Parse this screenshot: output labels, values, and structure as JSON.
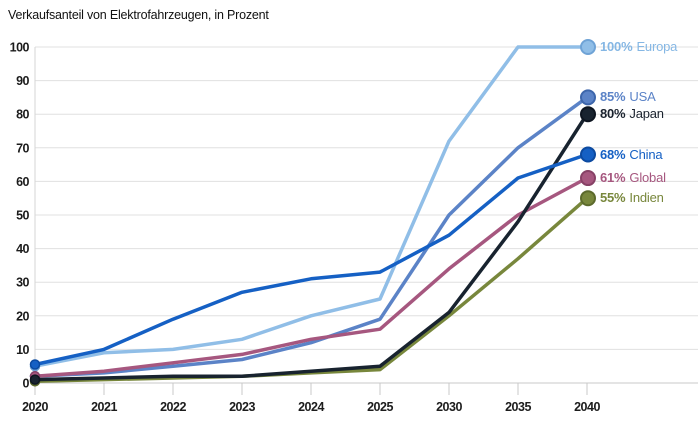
{
  "title": "Verkaufsanteil von Elektrofahrzeugen, in Prozent",
  "chart_data": {
    "type": "line",
    "title": "Verkaufsanteil von Elektrofahrzeugen, in Prozent",
    "categories": [
      "2020",
      "2021",
      "2022",
      "2023",
      "2024",
      "2025",
      "2030",
      "2035",
      "2040"
    ],
    "x_axis_note": "category axis, equal spacing although year intervals differ after 2025",
    "ylim": [
      0,
      100
    ],
    "yticks": [
      0,
      10,
      20,
      30,
      40,
      50,
      60,
      70,
      80,
      90,
      100
    ],
    "grid": "horizontal",
    "legend_position": "endpoint-labels-right",
    "draw_order": [
      "Europa",
      "USA",
      "Global",
      "Indien",
      "Japan",
      "China"
    ],
    "series": [
      {
        "name": "Europa",
        "end_label": "100%",
        "color": "#90bee7",
        "marker_stroke": "#6fa3d6",
        "text_color": "#85b7e4",
        "values": [
          5,
          9,
          10,
          13,
          20,
          25,
          72,
          100,
          100
        ]
      },
      {
        "name": "USA",
        "end_label": "85%",
        "color": "#5b83c7",
        "marker_stroke": "#3d66ab",
        "text_color": "#5b83c7",
        "values": [
          2,
          3,
          5,
          7,
          12,
          19,
          50,
          70,
          85
        ]
      },
      {
        "name": "Japan",
        "end_label": "80%",
        "color": "#18232f",
        "marker_stroke": "#0d1520",
        "text_color": "#1a222e",
        "values": [
          1,
          1.5,
          2,
          2,
          3.5,
          5,
          21,
          48,
          80
        ]
      },
      {
        "name": "China",
        "end_label": "68%",
        "color": "#1560c4",
        "marker_stroke": "#0c4aa0",
        "text_color": "#1560c4",
        "values": [
          5.5,
          10,
          19,
          27,
          31,
          33,
          44,
          61,
          68
        ]
      },
      {
        "name": "Global",
        "end_label": "61%",
        "color": "#a6577f",
        "marker_stroke": "#874166",
        "text_color": "#a6577f",
        "values": [
          2,
          3.5,
          6,
          8.5,
          13,
          16,
          34,
          50,
          61
        ]
      },
      {
        "name": "Indien",
        "end_label": "55%",
        "color": "#78873c",
        "marker_stroke": "#5c6a2c",
        "text_color": "#78873c",
        "values": [
          0.5,
          1,
          1.5,
          2,
          3,
          4,
          20,
          37,
          55
        ]
      }
    ]
  }
}
